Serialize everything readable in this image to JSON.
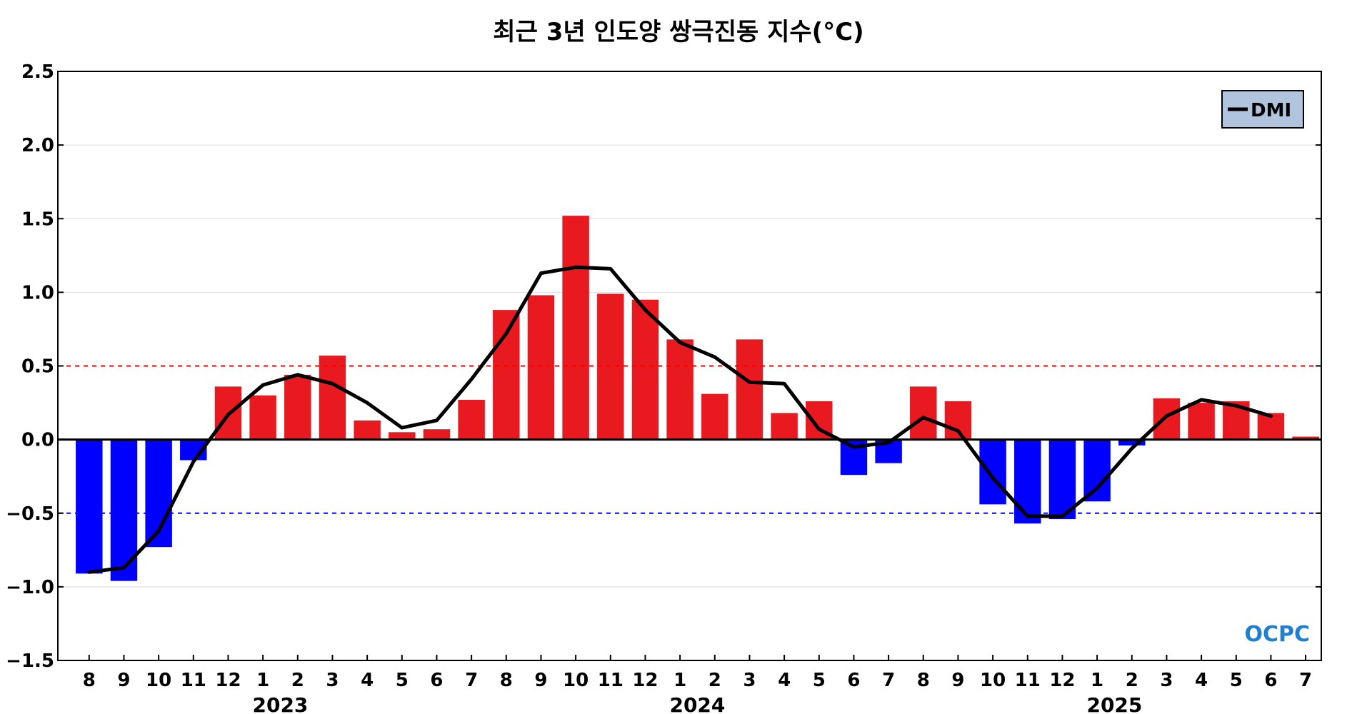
{
  "chart_data": {
    "type": "bar",
    "title": "최근 3년 인도양 쌍극진동 지수(°C)",
    "xlabel": "",
    "ylabel": "",
    "ylim": [
      -1.5,
      2.5
    ],
    "yticks": [
      2.5,
      2.0,
      1.5,
      1.0,
      0.5,
      0.0,
      -0.5,
      -1.0,
      -1.5
    ],
    "ytick_labels": [
      "2.5",
      "2.0",
      "1.5",
      "1.0",
      "0.5",
      "0.0",
      "−0.5",
      "−1.0",
      "−1.5"
    ],
    "categories": [
      "8",
      "9",
      "10",
      "11",
      "12",
      "1",
      "2",
      "3",
      "4",
      "5",
      "6",
      "7",
      "8",
      "9",
      "10",
      "11",
      "12",
      "1",
      "2",
      "3",
      "4",
      "5",
      "6",
      "7",
      "8",
      "9",
      "10",
      "11",
      "12",
      "1",
      "2",
      "3",
      "4",
      "5",
      "6",
      "7"
    ],
    "year_labels": [
      {
        "label": "2023",
        "start": 0,
        "end": 11
      },
      {
        "label": "2024",
        "start": 12,
        "end": 23
      },
      {
        "label": "2025",
        "start": 24,
        "end": 35
      }
    ],
    "series": [
      {
        "kind": "bar",
        "values": [
          -0.91,
          -0.96,
          -0.73,
          -0.14,
          0.36,
          0.3,
          0.44,
          0.57,
          0.13,
          0.05,
          0.07,
          0.27,
          0.88,
          0.98,
          1.52,
          0.99,
          0.95,
          0.68,
          0.31,
          0.68,
          0.18,
          0.26,
          -0.24,
          -0.16,
          0.36,
          0.26,
          -0.44,
          -0.57,
          -0.54,
          -0.42,
          -0.04,
          0.28,
          0.25,
          0.26,
          0.18,
          0.02
        ],
        "positive_color": "#e8191f",
        "negative_color": "#0000ff"
      },
      {
        "kind": "line",
        "name": "DMI",
        "values": [
          -0.9,
          -0.87,
          -0.62,
          -0.15,
          0.17,
          0.37,
          0.44,
          0.38,
          0.25,
          0.08,
          0.13,
          0.41,
          0.72,
          1.13,
          1.17,
          1.16,
          0.88,
          0.66,
          0.56,
          0.39,
          0.38,
          0.07,
          -0.05,
          -0.02,
          0.15,
          0.06,
          -0.26,
          -0.52,
          -0.52,
          -0.33,
          -0.06,
          0.16,
          0.27,
          0.23,
          0.16,
          null
        ],
        "color": "#000000"
      }
    ],
    "reference_lines": [
      {
        "value": 0.5,
        "color": "#ff0000",
        "style": "dashed"
      },
      {
        "value": -0.5,
        "color": "#0000ff",
        "style": "dashed"
      },
      {
        "value": 0.0,
        "color": "#000000",
        "style": "solid"
      }
    ],
    "grid": true,
    "legend": {
      "placement": "top-right",
      "background": "#b0c4de"
    },
    "logo": "OCPC"
  }
}
